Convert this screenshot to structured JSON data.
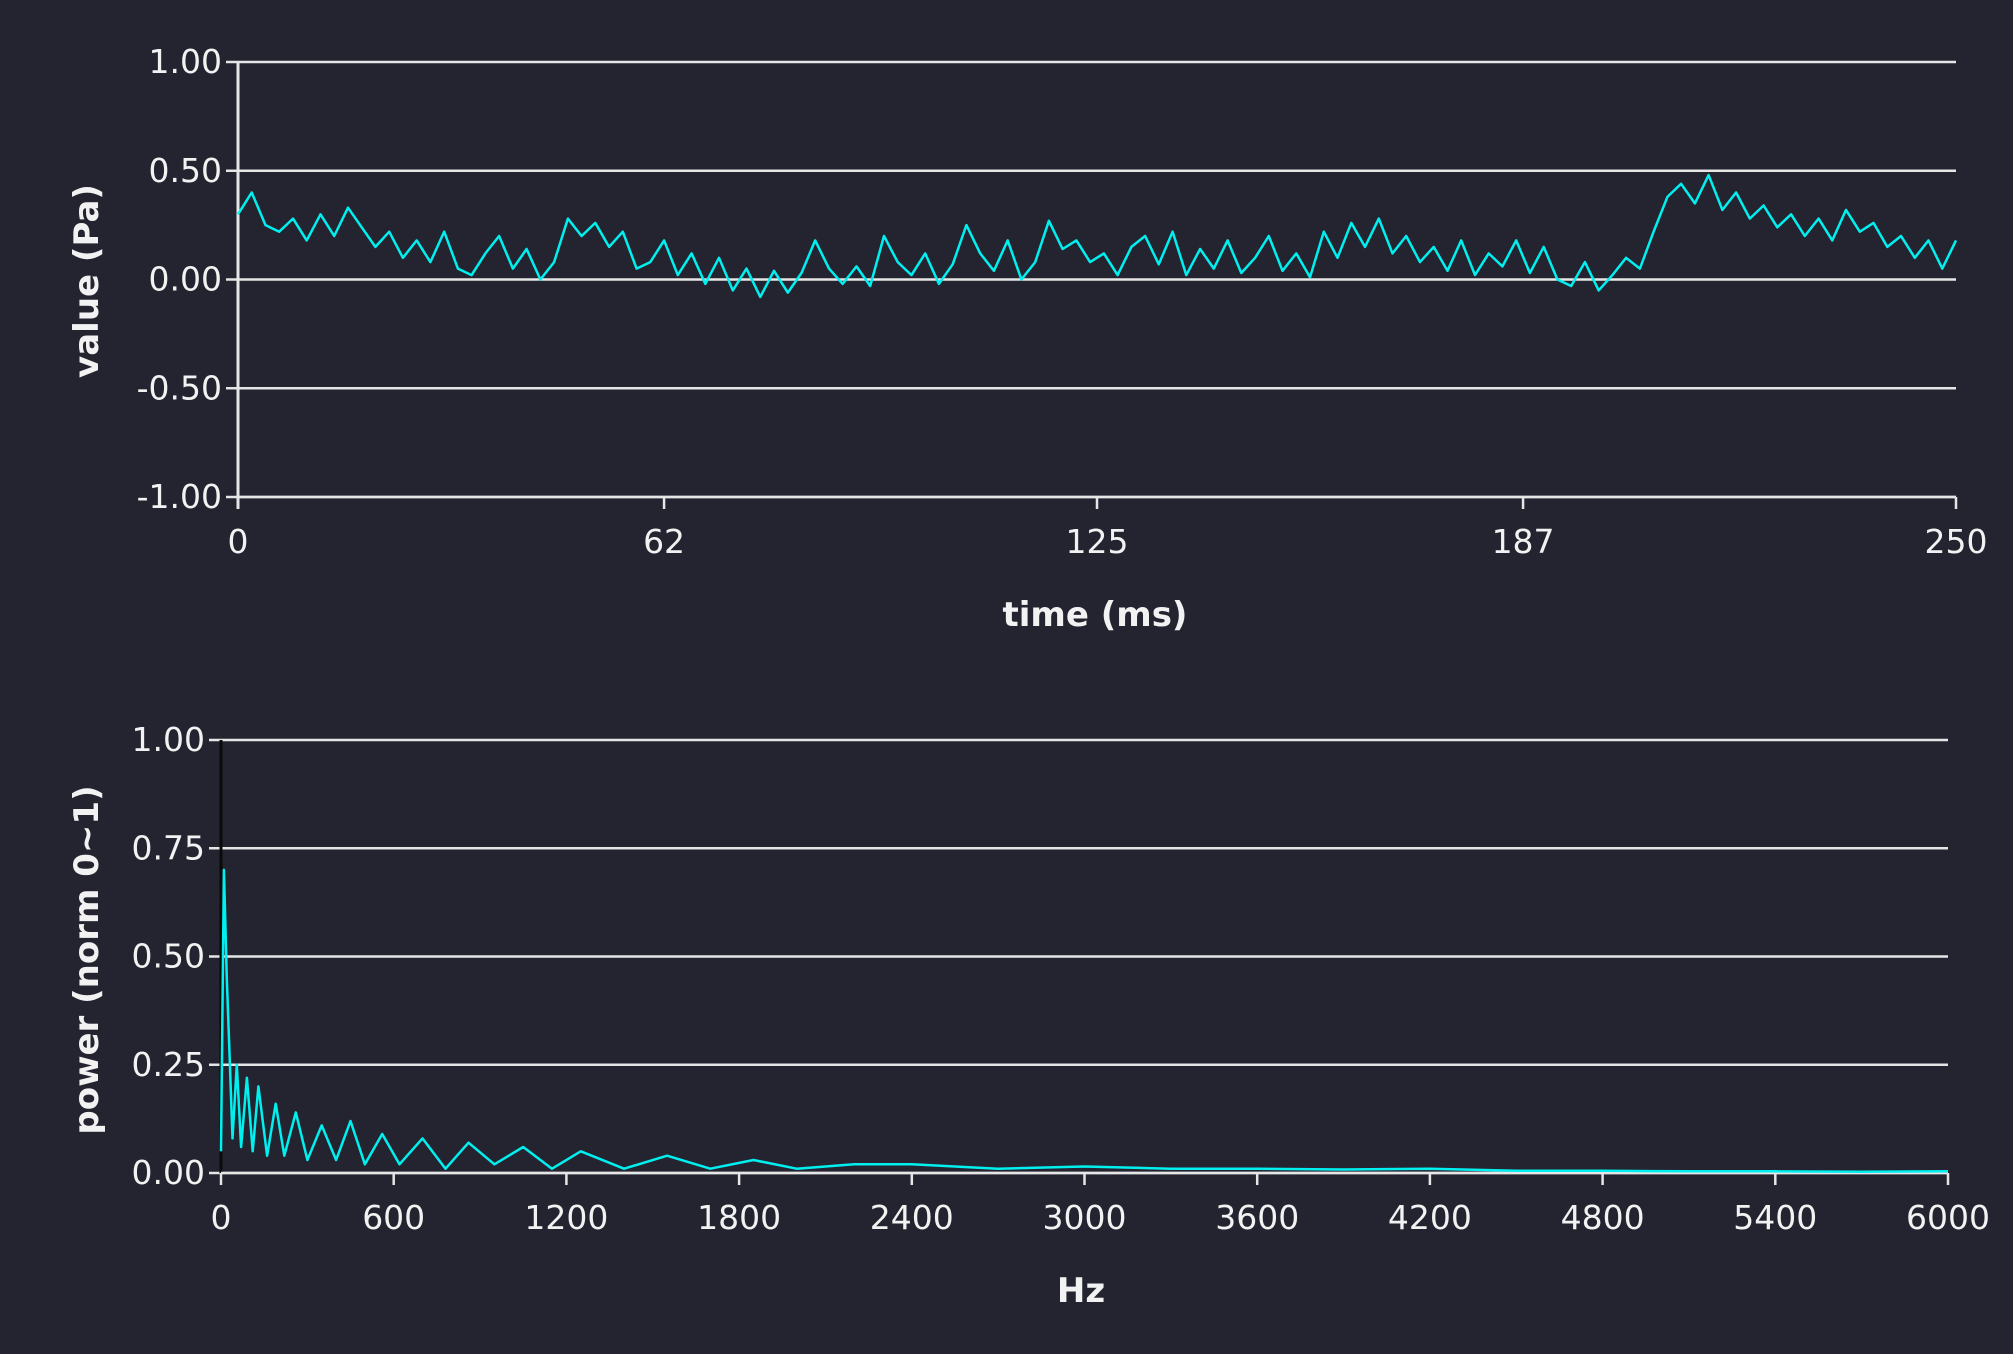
{
  "colors": {
    "background": "#232430",
    "grid": "#e6e6e6",
    "axis": "#e6e6e6",
    "text": "#f2f2f2",
    "series": "#00f0f0"
  },
  "chart_data": [
    {
      "type": "line",
      "xlabel": "time (ms)",
      "ylabel": "value (Pa)",
      "xlim": [
        0,
        250
      ],
      "ylim": [
        -1.0,
        1.0
      ],
      "x_ticks": [
        0,
        62,
        125,
        187,
        250
      ],
      "y_ticks": [
        1.0,
        0.5,
        0.0,
        -0.5,
        -1.0
      ],
      "x_tick_labels": [
        "0",
        "62",
        "125",
        "187",
        "250"
      ],
      "y_tick_labels": [
        "1.00",
        "0.50",
        "0.00",
        "-0.50",
        "-1.00"
      ],
      "grid": "horizontal",
      "series": [
        {
          "x": [
            0,
            2,
            4,
            6,
            8,
            10,
            12,
            14,
            16,
            18,
            20,
            22,
            24,
            26,
            28,
            30,
            32,
            34,
            36,
            38,
            40,
            42,
            44,
            46,
            48,
            50,
            52,
            54,
            56,
            58,
            60,
            62,
            64,
            66,
            68,
            70,
            72,
            74,
            76,
            78,
            80,
            82,
            84,
            86,
            88,
            90,
            92,
            94,
            96,
            98,
            100,
            102,
            104,
            106,
            108,
            110,
            112,
            114,
            116,
            118,
            120,
            122,
            124,
            126,
            128,
            130,
            132,
            134,
            136,
            138,
            140,
            142,
            144,
            146,
            148,
            150,
            152,
            154,
            156,
            158,
            160,
            162,
            164,
            166,
            168,
            170,
            172,
            174,
            176,
            178,
            180,
            182,
            184,
            186,
            188,
            190,
            192,
            194,
            196,
            198,
            200,
            202,
            204,
            206,
            208,
            210,
            212,
            214,
            216,
            218,
            220,
            222,
            224,
            226,
            228,
            230,
            232,
            234,
            236,
            238,
            240,
            242,
            244,
            246,
            248,
            250
          ],
          "y": [
            0.3,
            0.4,
            0.25,
            0.22,
            0.28,
            0.18,
            0.3,
            0.2,
            0.33,
            0.24,
            0.15,
            0.22,
            0.1,
            0.18,
            0.08,
            0.22,
            0.05,
            0.02,
            0.12,
            0.2,
            0.05,
            0.14,
            0.0,
            0.08,
            0.28,
            0.2,
            0.26,
            0.15,
            0.22,
            0.05,
            0.08,
            0.18,
            0.02,
            0.12,
            -0.02,
            0.1,
            -0.05,
            0.05,
            -0.08,
            0.04,
            -0.06,
            0.03,
            0.18,
            0.05,
            -0.02,
            0.06,
            -0.03,
            0.2,
            0.08,
            0.02,
            0.12,
            -0.02,
            0.07,
            0.25,
            0.12,
            0.04,
            0.18,
            0.0,
            0.08,
            0.27,
            0.14,
            0.18,
            0.08,
            0.12,
            0.02,
            0.15,
            0.2,
            0.07,
            0.22,
            0.02,
            0.14,
            0.05,
            0.18,
            0.03,
            0.1,
            0.2,
            0.04,
            0.12,
            0.01,
            0.22,
            0.1,
            0.26,
            0.15,
            0.28,
            0.12,
            0.2,
            0.08,
            0.15,
            0.04,
            0.18,
            0.02,
            0.12,
            0.06,
            0.18,
            0.03,
            0.15,
            0.0,
            -0.03,
            0.08,
            -0.05,
            0.02,
            0.1,
            0.05,
            0.22,
            0.38,
            0.44,
            0.35,
            0.48,
            0.32,
            0.4,
            0.28,
            0.34,
            0.24,
            0.3,
            0.2,
            0.28,
            0.18,
            0.32,
            0.22,
            0.26,
            0.15,
            0.2,
            0.1,
            0.18,
            0.05,
            0.18
          ]
        }
      ]
    },
    {
      "type": "line",
      "xlabel": "Hz",
      "ylabel": "power (norm 0~1)",
      "xlim": [
        0,
        6000
      ],
      "ylim": [
        0,
        1.0
      ],
      "x_ticks": [
        0,
        600,
        1200,
        1800,
        2400,
        3000,
        3600,
        4200,
        4800,
        5400,
        6000
      ],
      "y_ticks": [
        1.0,
        0.75,
        0.5,
        0.25,
        0.0
      ],
      "x_tick_labels": [
        "0",
        "600",
        "1200",
        "1800",
        "2400",
        "3000",
        "3600",
        "4200",
        "4800",
        "5400",
        "6000"
      ],
      "y_tick_labels": [
        "1.00",
        "0.75",
        "0.50",
        "0.25",
        "0.00"
      ],
      "grid": "horizontal",
      "series": [
        {
          "x": [
            0,
            10,
            20,
            30,
            40,
            55,
            70,
            90,
            110,
            130,
            160,
            190,
            220,
            260,
            300,
            350,
            400,
            450,
            500,
            560,
            620,
            700,
            780,
            860,
            950,
            1050,
            1150,
            1250,
            1400,
            1550,
            1700,
            1850,
            2000,
            2200,
            2400,
            2700,
            3000,
            3300,
            3600,
            3900,
            4200,
            4500,
            4800,
            5100,
            5400,
            5700,
            6000
          ],
          "y": [
            0.05,
            0.7,
            0.45,
            0.27,
            0.08,
            0.25,
            0.06,
            0.22,
            0.05,
            0.2,
            0.04,
            0.16,
            0.04,
            0.14,
            0.03,
            0.11,
            0.03,
            0.12,
            0.02,
            0.09,
            0.02,
            0.08,
            0.01,
            0.07,
            0.02,
            0.06,
            0.01,
            0.05,
            0.01,
            0.04,
            0.01,
            0.03,
            0.01,
            0.02,
            0.02,
            0.01,
            0.015,
            0.01,
            0.01,
            0.008,
            0.01,
            0.005,
            0.005,
            0.004,
            0.004,
            0.003,
            0.004
          ]
        }
      ]
    }
  ]
}
